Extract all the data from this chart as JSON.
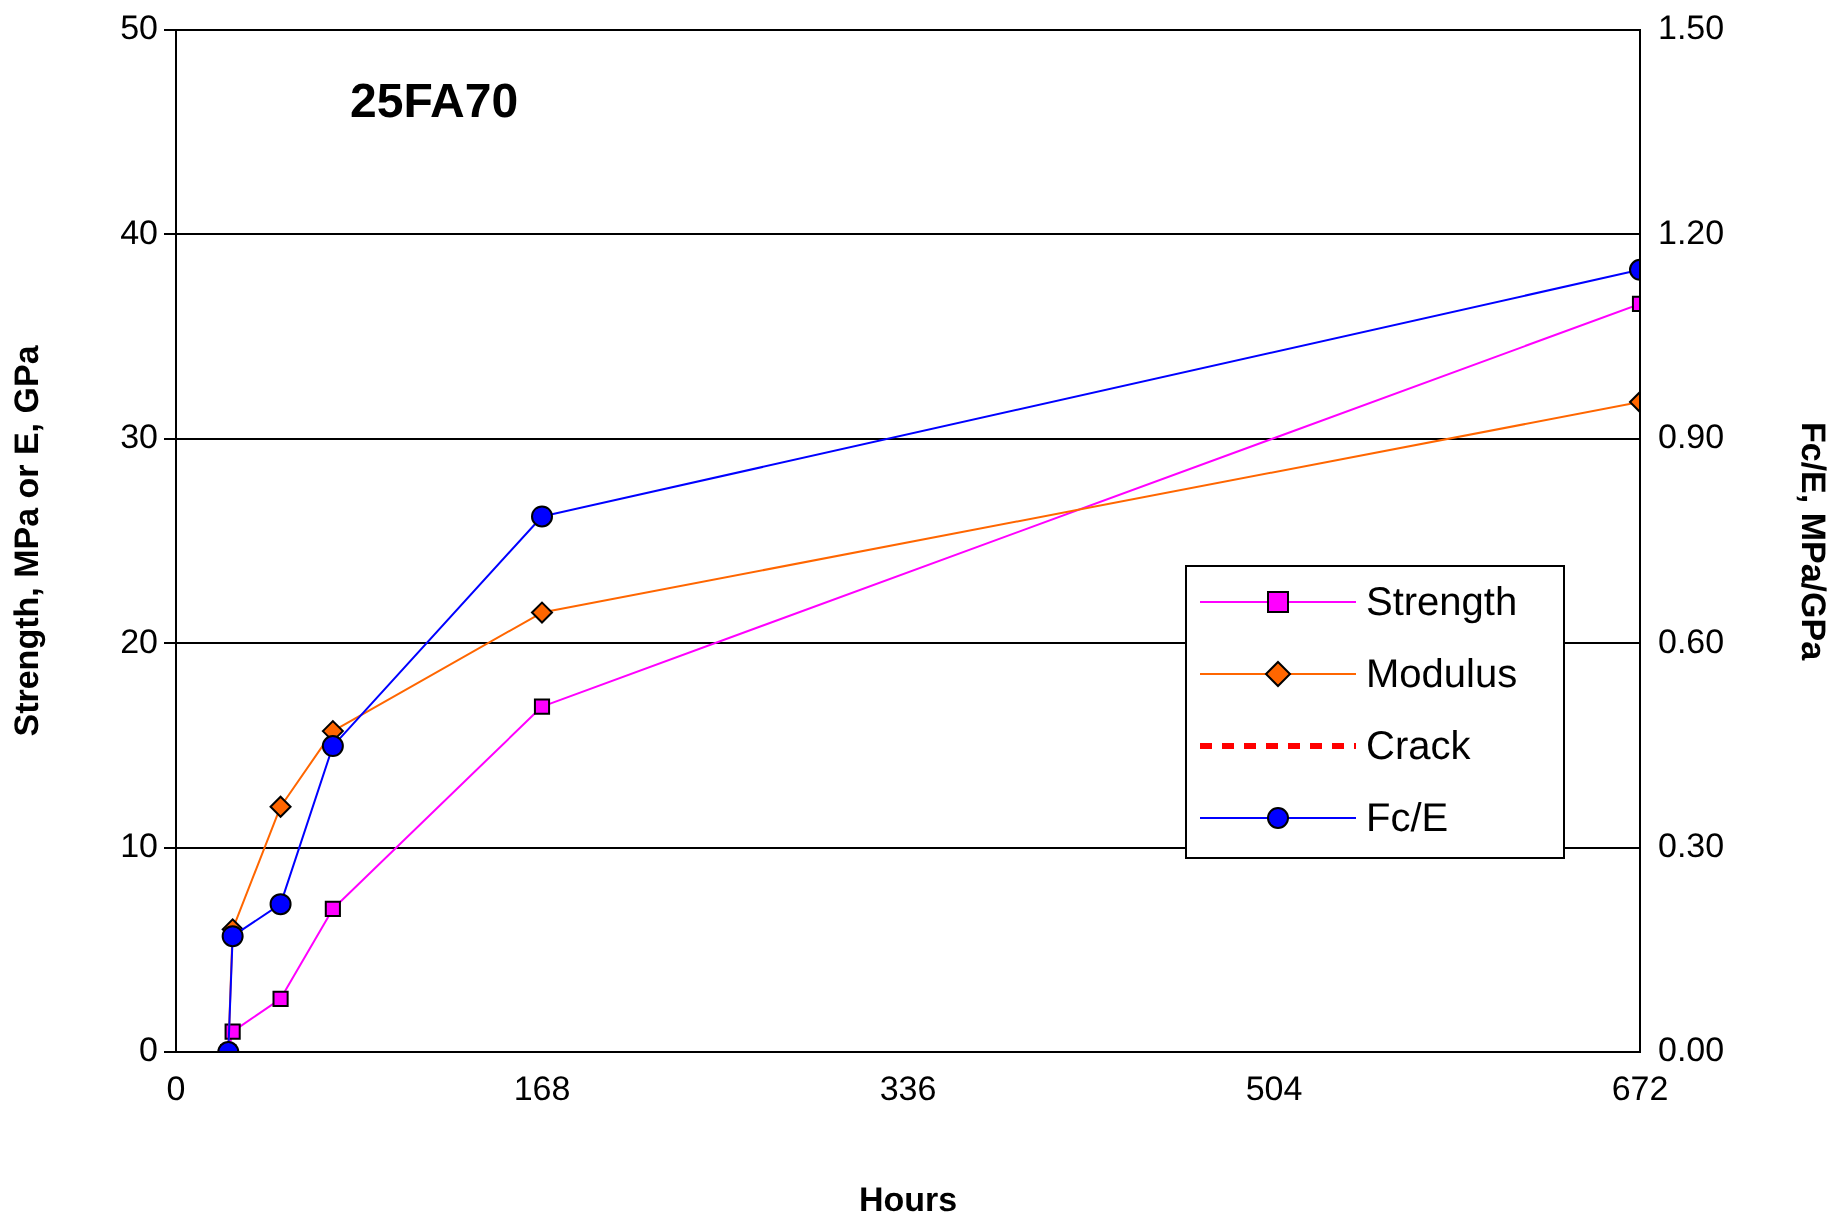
{
  "chart_data": {
    "type": "line",
    "title": "25FA70",
    "xlabel": "Hours",
    "ylabel": "Strength, MPa or E, GPa",
    "y2label": "Fc/E, MPa/GPa",
    "xlim": [
      0,
      672
    ],
    "xticks": [
      0,
      168,
      336,
      504,
      672
    ],
    "ylim": [
      0,
      50
    ],
    "yticks": [
      0,
      10,
      20,
      30,
      40,
      50
    ],
    "y2lim": [
      0,
      1.5
    ],
    "y2ticks": [
      {
        "value": 0,
        "label": "0.00"
      },
      {
        "value": 0.3,
        "label": "0.30"
      },
      {
        "value": 0.6,
        "label": "0.60"
      },
      {
        "value": 0.9,
        "label": "0.90"
      },
      {
        "value": 1.2,
        "label": "1.20"
      },
      {
        "value": 1.5,
        "label": "1.50"
      }
    ],
    "grid": "y",
    "legend": "right",
    "series": [
      {
        "name": "Strength",
        "color": "#ff00ff",
        "marker": "square",
        "x": [
          24,
          26,
          48,
          72,
          168,
          672
        ],
        "values": [
          0,
          1.0,
          2.6,
          7.0,
          16.9,
          36.6
        ]
      },
      {
        "name": "Modulus",
        "color": "#ff6600",
        "marker": "diamond",
        "x": [
          24,
          26,
          48,
          72,
          168,
          672
        ],
        "values": [
          0,
          6.0,
          12.0,
          15.7,
          21.5,
          31.8
        ]
      },
      {
        "name": "Crack",
        "color": "#ff0000",
        "marker": "none",
        "line_style": "dashed"
      },
      {
        "name": "Fc/E",
        "color": "#0000ff",
        "marker": "circle",
        "axis": "y2",
        "x": [
          24,
          26,
          48,
          72,
          168,
          672
        ],
        "values": [
          0,
          0.17,
          0.217,
          0.449,
          0.786,
          1.148
        ]
      }
    ]
  }
}
